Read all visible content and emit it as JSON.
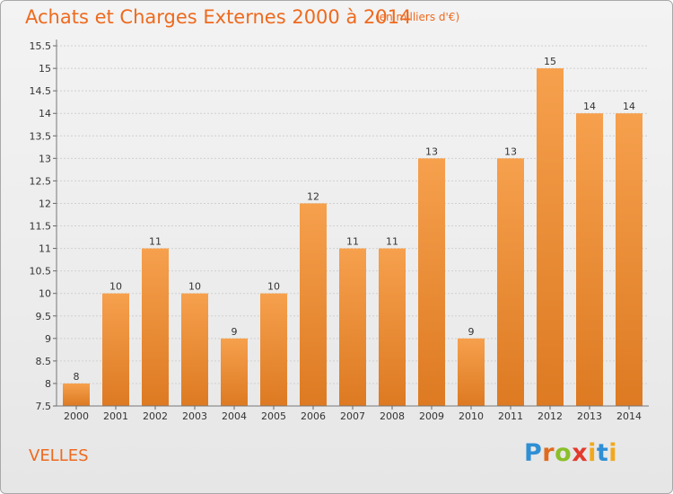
{
  "header": {
    "title": "Achats et Charges Externes 2000 à 2014",
    "subtitle": "(en milliers d'€)"
  },
  "footer": {
    "commune": "VELLES",
    "logo": "Proxiti"
  },
  "colors": {
    "accent": "#ee6a1e",
    "bar_top": "#f6a04d",
    "bar_bottom": "#dd7a22"
  },
  "chart_data": {
    "type": "bar",
    "title": "Achats et Charges Externes 2000 à 2014",
    "subtitle": "(en milliers d'€)",
    "xlabel": "",
    "ylabel": "",
    "categories": [
      "2000",
      "2001",
      "2002",
      "2003",
      "2004",
      "2005",
      "2006",
      "2007",
      "2008",
      "2009",
      "2010",
      "2011",
      "2012",
      "2013",
      "2014"
    ],
    "values": [
      8,
      10,
      11,
      10,
      9,
      10,
      12,
      11,
      11,
      13,
      9,
      13,
      15,
      14,
      14
    ],
    "ylim": [
      7.5,
      15.5
    ],
    "yticks": [
      "7.5",
      "8",
      "8.5",
      "9",
      "9.5",
      "10",
      "10.5",
      "11",
      "11.5",
      "12",
      "12.5",
      "13",
      "13.5",
      "14",
      "14.5",
      "15",
      "15.5"
    ],
    "grid": true
  }
}
